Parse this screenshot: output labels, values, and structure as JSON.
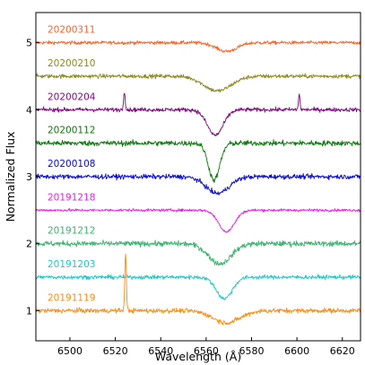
{
  "chart_data": {
    "type": "line",
    "title": "",
    "xlabel": "Wavelength (Å)",
    "ylabel": "Normalized Flux",
    "xlim": [
      6485,
      6628
    ],
    "ylim": [
      0.55,
      5.45
    ],
    "xticks": [
      6500,
      6520,
      6540,
      6560,
      6580,
      6600,
      6620
    ],
    "yticks": [
      1,
      2,
      3,
      4,
      5
    ],
    "grid": false,
    "legend": "none",
    "series": [
      {
        "name": "20200311",
        "color": "#ff6020",
        "offset": 5.0,
        "profile": "absorption",
        "center": 6569,
        "depth": 0.13,
        "width": 4.5,
        "noise": 0.025,
        "spikes": []
      },
      {
        "name": "20200210",
        "color": "#8a8a1c",
        "offset": 4.5,
        "profile": "absorption",
        "center": 6565,
        "depth": 0.22,
        "width": 6,
        "noise": 0.03,
        "spikes": []
      },
      {
        "name": "20200204",
        "color": "#7a0a7a",
        "offset": 4.0,
        "profile": "absorption",
        "center": 6564,
        "depth": 0.38,
        "width": 3.5,
        "noise": 0.03,
        "spikes": [
          [
            6524,
            0.28
          ],
          [
            6601,
            0.22
          ]
        ]
      },
      {
        "name": "20200112",
        "color": "#0a7a0a",
        "offset": 3.5,
        "profile": "absorption",
        "center": 6563.5,
        "depth": 0.55,
        "width": 2.5,
        "noise": 0.04,
        "spikes": []
      },
      {
        "name": "20200108",
        "color": "#0a0acc",
        "offset": 3.0,
        "profile": "absorption",
        "center": 6565,
        "depth": 0.25,
        "width": 5,
        "noise": 0.035,
        "spikes": []
      },
      {
        "name": "20191218",
        "color": "#e820e8",
        "offset": 2.5,
        "profile": "absorption",
        "center": 6569,
        "depth": 0.32,
        "width": 3.5,
        "noise": 0.02,
        "spikes": []
      },
      {
        "name": "20191212",
        "color": "#3cb371",
        "offset": 2.0,
        "profile": "absorption",
        "center": 6566,
        "depth": 0.3,
        "width": 5,
        "noise": 0.04,
        "spikes": []
      },
      {
        "name": "20191203",
        "color": "#20c8c8",
        "offset": 1.5,
        "profile": "absorption",
        "center": 6568,
        "depth": 0.32,
        "width": 3.5,
        "noise": 0.03,
        "spikes": []
      },
      {
        "name": "20191119",
        "color": "#ff8c10",
        "offset": 1.0,
        "profile": "absorption",
        "center": 6569,
        "depth": 0.18,
        "width": 6,
        "noise": 0.035,
        "spikes": [
          [
            6524.5,
            0.85
          ]
        ]
      }
    ]
  }
}
